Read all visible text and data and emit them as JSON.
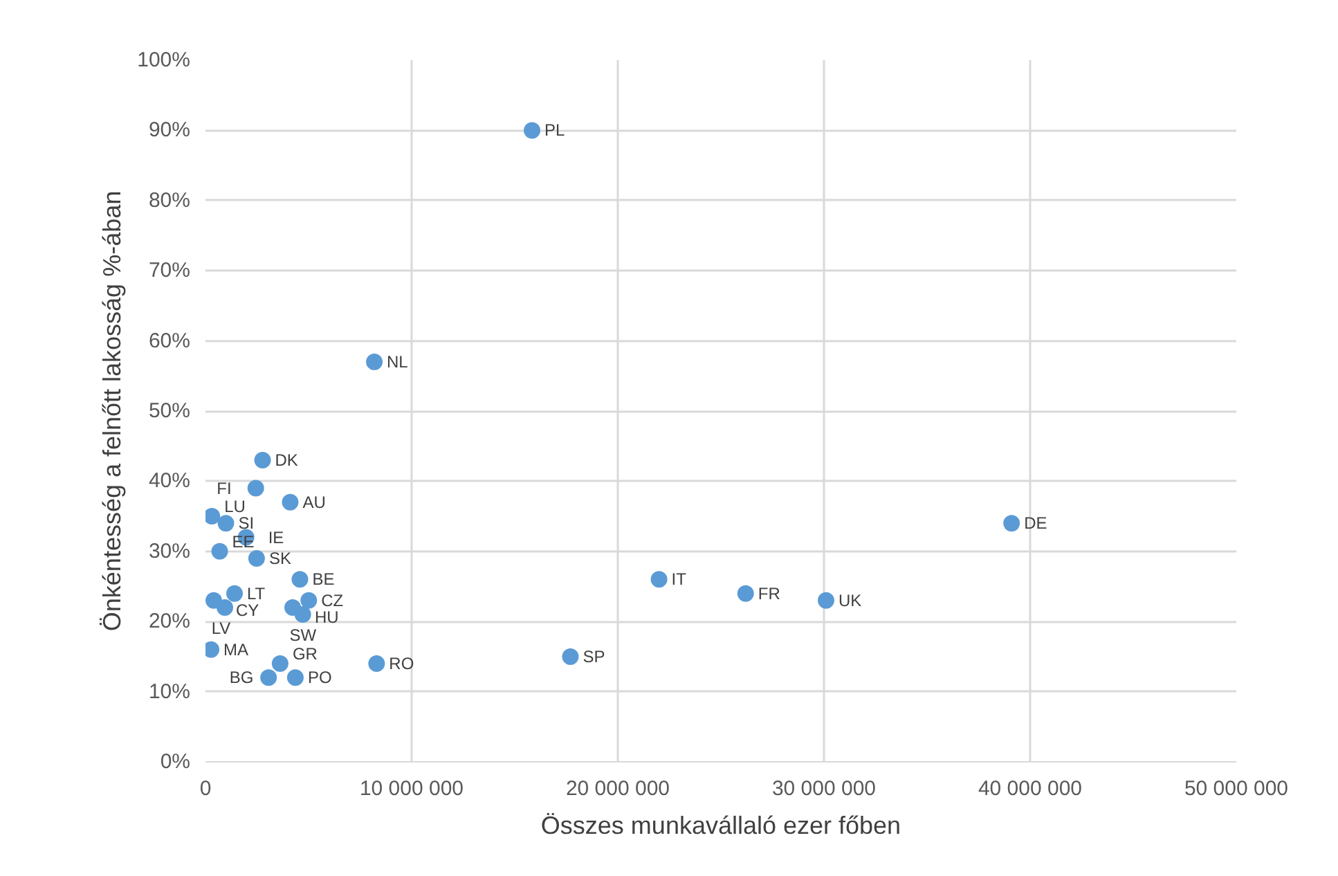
{
  "chart_data": {
    "type": "scatter",
    "xlabel": "Összes munkavállaló ezer főben",
    "ylabel": "Önkéntesség a felnőtt lakosság %-ában",
    "series": [
      {
        "color": "#5b9bd5",
        "x": [
          15840000,
          8190000,
          2770000,
          2440000,
          4110000,
          310000,
          990000,
          1970000,
          690000,
          2480000,
          4580000,
          400000,
          1410000,
          940000,
          4230000,
          5010000,
          4720000,
          270000,
          3620000,
          8300000,
          3060000,
          4360000,
          22000000,
          26200000,
          30100000,
          17700000,
          39100000
        ],
        "values": [
          90,
          57,
          43,
          39,
          37,
          35,
          34,
          32,
          30,
          29,
          26,
          23,
          24,
          22,
          22,
          23,
          21,
          16,
          14,
          14,
          12,
          12,
          26,
          24,
          23,
          15,
          34
        ],
        "value_labels": [
          "PL",
          "NL",
          "DK",
          "FI",
          "AU",
          "LU",
          "SI",
          "IE",
          "EE",
          "SK",
          "BE",
          "CY",
          "LT",
          "LV",
          "HU",
          "CZ",
          "SW",
          "MA",
          "GR",
          "RO",
          "BG",
          "PO",
          "IT",
          "FR",
          "UK",
          "SP",
          "DE"
        ]
      }
    ],
    "xlim": [
      0,
      50000000
    ],
    "ylim": [
      0,
      100
    ],
    "xticks": [
      {
        "value": 0,
        "label": "0"
      },
      {
        "value": 10000000,
        "label": "10 000 000"
      },
      {
        "value": 20000000,
        "label": "20 000 000"
      },
      {
        "value": 30000000,
        "label": "30 000 000"
      },
      {
        "value": 40000000,
        "label": "40 000 000"
      },
      {
        "value": 50000000,
        "label": "50 000 000"
      }
    ],
    "yticks": [
      {
        "value": 0,
        "label": "0%"
      },
      {
        "value": 10,
        "label": "10%"
      },
      {
        "value": 20,
        "label": "20%"
      },
      {
        "value": 30,
        "label": "30%"
      },
      {
        "value": 40,
        "label": "40%"
      },
      {
        "value": 50,
        "label": "50%"
      },
      {
        "value": 60,
        "label": "60%"
      },
      {
        "value": 70,
        "label": "70%"
      },
      {
        "value": 80,
        "label": "80%"
      },
      {
        "value": 90,
        "label": "90%"
      },
      {
        "value": 100,
        "label": "100%"
      }
    ],
    "grid": true,
    "marker": "circle"
  }
}
